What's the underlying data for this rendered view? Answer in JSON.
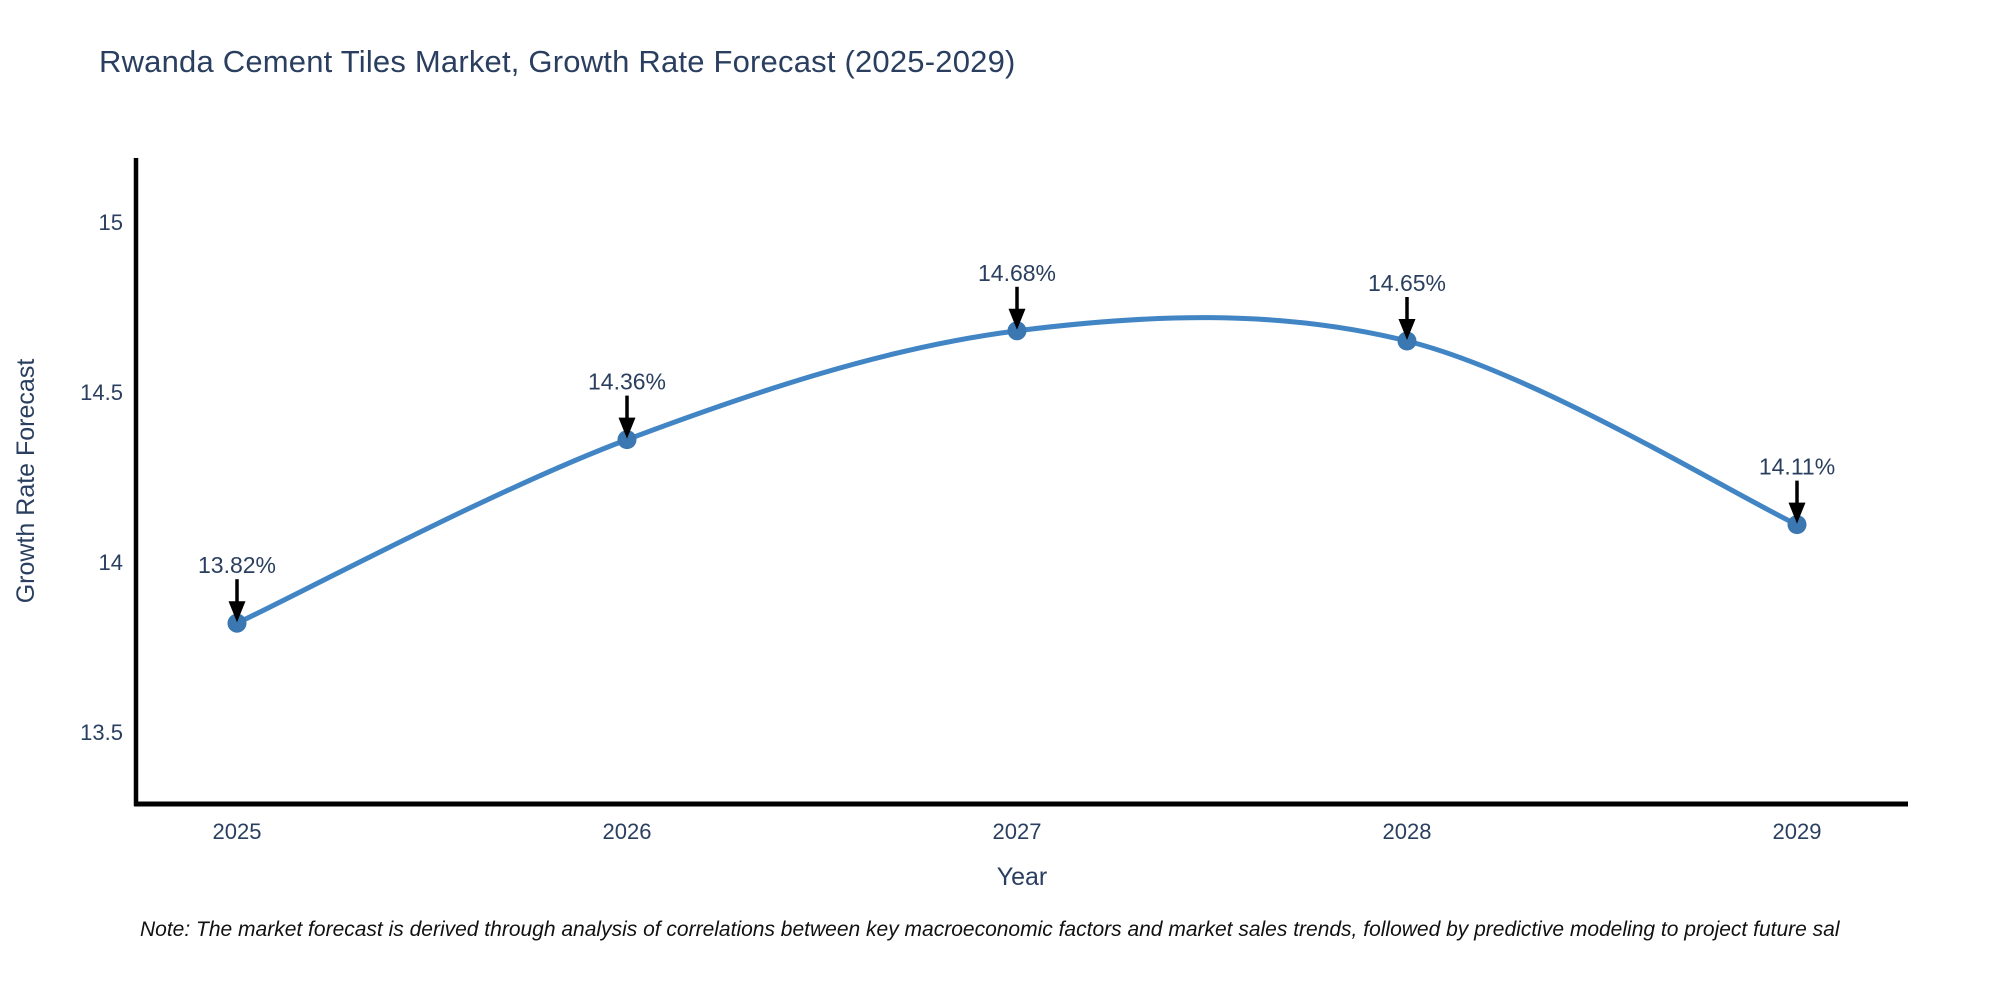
{
  "title": "Rwanda Cement Tiles Market, Growth Rate Forecast (2025-2029)",
  "note": "Note: The market forecast is derived through analysis of correlations between key macroeconomic factors and market sales trends, followed by predictive modeling to project future sal",
  "chart_data": {
    "type": "line",
    "title": "Rwanda Cement Tiles Market, Growth Rate Forecast (2025-2029)",
    "xlabel": "Year",
    "ylabel": "Growth Rate Forecast",
    "x": [
      2025,
      2026,
      2027,
      2028,
      2029
    ],
    "x_tick_labels": [
      "2025",
      "2026",
      "2027",
      "2028",
      "2029"
    ],
    "series": [
      {
        "name": "Growth Rate Forecast",
        "values": [
          13.82,
          14.36,
          14.68,
          14.65,
          14.11
        ],
        "point_labels": [
          "13.82%",
          "14.36%",
          "14.68%",
          "14.65%",
          "14.11%"
        ]
      }
    ],
    "y_tick_values": [
      15,
      14.5,
      14,
      13.5
    ],
    "y_tick_labels": [
      "15",
      "14.5",
      "14",
      "13.5"
    ],
    "ylim": [
      13.28,
      15.18
    ],
    "xlim": [
      2025,
      2029
    ],
    "line_shape": "spline",
    "grid": false,
    "legend_position": "none",
    "colors": {
      "line": "#4185c5",
      "marker": "#3b77b0",
      "axis_line": "#000000",
      "text": "#2a3f5f",
      "annotation_arrow": "#000000",
      "background": "#ffffff"
    }
  }
}
